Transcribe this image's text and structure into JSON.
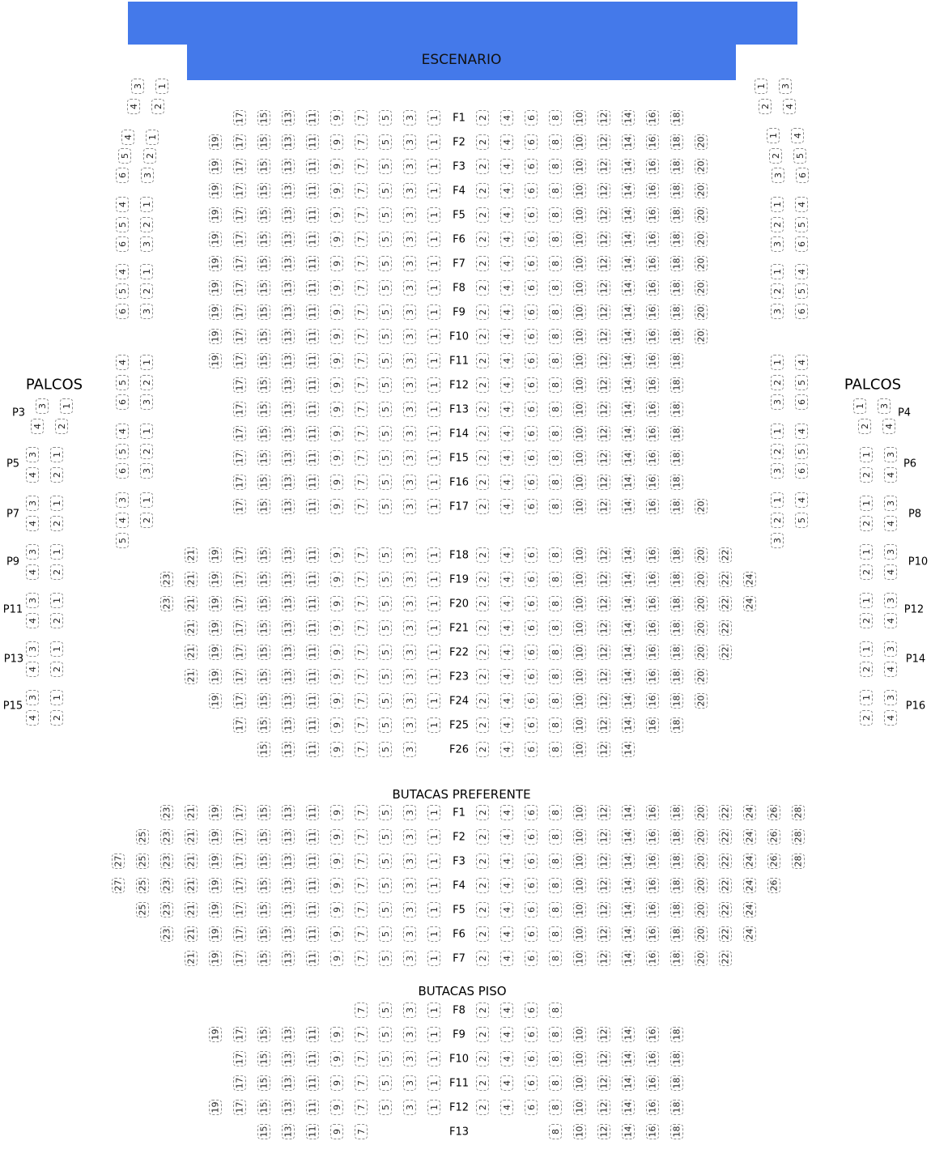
{
  "stage": {
    "label": "ESCENARIO",
    "color": "#4479ea"
  },
  "palcos_label": "PALCOS",
  "main": {
    "rows": [
      {
        "label": "F1",
        "left": [
          17,
          15,
          13,
          11,
          9,
          7,
          5,
          3,
          1
        ],
        "right": [
          2,
          4,
          6,
          8,
          10,
          12,
          14,
          16,
          18
        ]
      },
      {
        "label": "F2",
        "left": [
          19,
          17,
          15,
          13,
          11,
          9,
          7,
          5,
          3,
          1
        ],
        "right": [
          2,
          4,
          6,
          8,
          10,
          12,
          14,
          16,
          18,
          20
        ]
      },
      {
        "label": "F3",
        "left": [
          19,
          17,
          15,
          13,
          11,
          9,
          7,
          5,
          3,
          1
        ],
        "right": [
          2,
          4,
          6,
          8,
          10,
          12,
          14,
          16,
          18,
          20
        ]
      },
      {
        "label": "F4",
        "left": [
          19,
          17,
          15,
          13,
          11,
          9,
          7,
          5,
          3,
          1
        ],
        "right": [
          2,
          4,
          6,
          8,
          10,
          12,
          14,
          16,
          18,
          20
        ]
      },
      {
        "label": "F5",
        "left": [
          19,
          17,
          15,
          13,
          11,
          9,
          7,
          5,
          3,
          1
        ],
        "right": [
          2,
          4,
          6,
          8,
          10,
          12,
          14,
          16,
          18,
          20
        ]
      },
      {
        "label": "F6",
        "left": [
          19,
          17,
          15,
          13,
          11,
          9,
          7,
          5,
          3,
          1
        ],
        "right": [
          2,
          4,
          6,
          8,
          10,
          12,
          14,
          16,
          18,
          20
        ]
      },
      {
        "label": "F7",
        "left": [
          19,
          17,
          15,
          13,
          11,
          9,
          7,
          5,
          3,
          1
        ],
        "right": [
          2,
          4,
          6,
          8,
          10,
          12,
          14,
          16,
          18,
          20
        ]
      },
      {
        "label": "F8",
        "left": [
          19,
          17,
          15,
          13,
          11,
          9,
          7,
          5,
          3,
          1
        ],
        "right": [
          2,
          4,
          6,
          8,
          10,
          12,
          14,
          16,
          18,
          20
        ]
      },
      {
        "label": "F9",
        "left": [
          19,
          17,
          15,
          13,
          11,
          9,
          7,
          5,
          3,
          1
        ],
        "right": [
          2,
          4,
          6,
          8,
          10,
          12,
          14,
          16,
          18,
          20
        ]
      },
      {
        "label": "F10",
        "left": [
          19,
          17,
          15,
          13,
          11,
          9,
          7,
          5,
          3,
          1
        ],
        "right": [
          2,
          4,
          6,
          8,
          10,
          12,
          14,
          16,
          18,
          20
        ]
      },
      {
        "label": "F11",
        "left": [
          19,
          17,
          15,
          13,
          11,
          9,
          7,
          5,
          3,
          1
        ],
        "right": [
          2,
          4,
          6,
          8,
          10,
          12,
          14,
          16,
          18
        ]
      },
      {
        "label": "F12",
        "left": [
          17,
          15,
          13,
          11,
          9,
          7,
          5,
          3,
          1
        ],
        "right": [
          2,
          4,
          6,
          8,
          10,
          12,
          14,
          16,
          18
        ]
      },
      {
        "label": "F13",
        "left": [
          17,
          15,
          13,
          11,
          9,
          7,
          5,
          3,
          1
        ],
        "right": [
          2,
          4,
          6,
          8,
          10,
          12,
          14,
          16,
          18
        ]
      },
      {
        "label": "F14",
        "left": [
          17,
          15,
          13,
          11,
          9,
          7,
          5,
          3,
          1
        ],
        "right": [
          2,
          4,
          6,
          8,
          10,
          12,
          14,
          16,
          18
        ]
      },
      {
        "label": "F15",
        "left": [
          17,
          15,
          13,
          11,
          9,
          7,
          5,
          3,
          1
        ],
        "right": [
          2,
          4,
          6,
          8,
          10,
          12,
          14,
          16,
          18
        ]
      },
      {
        "label": "F16",
        "left": [
          17,
          15,
          13,
          11,
          9,
          7,
          5,
          3,
          1
        ],
        "right": [
          2,
          4,
          6,
          8,
          10,
          12,
          14,
          16,
          18
        ]
      },
      {
        "label": "F17",
        "left": [
          17,
          15,
          13,
          11,
          9,
          7,
          5,
          3,
          1
        ],
        "right": [
          2,
          4,
          6,
          8,
          10,
          12,
          14,
          16,
          18,
          20
        ]
      },
      {
        "label": "F18",
        "left": [
          21,
          19,
          17,
          15,
          13,
          11,
          9,
          7,
          5,
          3,
          1
        ],
        "right": [
          2,
          4,
          6,
          8,
          10,
          12,
          14,
          16,
          18,
          20,
          22
        ]
      },
      {
        "label": "F19",
        "left": [
          23,
          21,
          19,
          17,
          15,
          13,
          11,
          9,
          7,
          5,
          3,
          1
        ],
        "right": [
          2,
          4,
          6,
          8,
          10,
          12,
          14,
          16,
          18,
          20,
          22,
          24
        ]
      },
      {
        "label": "F20",
        "left": [
          23,
          21,
          19,
          17,
          15,
          13,
          11,
          9,
          7,
          5,
          3,
          1
        ],
        "right": [
          2,
          4,
          6,
          8,
          10,
          12,
          14,
          16,
          18,
          20,
          22,
          24
        ]
      },
      {
        "label": "F21",
        "left": [
          21,
          19,
          17,
          15,
          13,
          11,
          9,
          7,
          5,
          3,
          1
        ],
        "right": [
          2,
          4,
          6,
          8,
          10,
          12,
          14,
          16,
          18,
          20,
          22
        ]
      },
      {
        "label": "F22",
        "left": [
          21,
          19,
          17,
          15,
          13,
          11,
          9,
          7,
          5,
          3,
          1
        ],
        "right": [
          2,
          4,
          6,
          8,
          10,
          12,
          14,
          16,
          18,
          20,
          22
        ]
      },
      {
        "label": "F23",
        "left": [
          21,
          19,
          17,
          15,
          13,
          11,
          9,
          7,
          5,
          3,
          1
        ],
        "right": [
          2,
          4,
          6,
          8,
          10,
          12,
          14,
          16,
          18,
          20
        ]
      },
      {
        "label": "F24",
        "left": [
          19,
          17,
          15,
          13,
          11,
          9,
          7,
          5,
          3,
          1
        ],
        "right": [
          2,
          4,
          6,
          8,
          10,
          12,
          14,
          16,
          18,
          20
        ]
      },
      {
        "label": "F25",
        "left": [
          17,
          15,
          13,
          11,
          9,
          7,
          5,
          3,
          1
        ],
        "right": [
          2,
          4,
          6,
          8,
          10,
          12,
          14,
          16,
          18
        ]
      },
      {
        "label": "F26",
        "left": [
          15,
          13,
          11,
          9,
          7,
          5,
          3
        ],
        "right": [
          2,
          4,
          6,
          8,
          10,
          12,
          14
        ]
      }
    ]
  },
  "preferente": {
    "title": "BUTACAS PREFERENTE",
    "rows": [
      {
        "label": "F1",
        "left": [
          23,
          21,
          19,
          17,
          15,
          13,
          11,
          9,
          7,
          5,
          3,
          1
        ],
        "right": [
          2,
          4,
          6,
          8,
          10,
          12,
          14,
          16,
          18,
          20,
          22,
          24,
          26,
          28
        ]
      },
      {
        "label": "F2",
        "left": [
          25,
          23,
          21,
          19,
          17,
          15,
          13,
          11,
          9,
          7,
          5,
          3,
          1
        ],
        "right": [
          2,
          4,
          6,
          8,
          10,
          12,
          14,
          16,
          18,
          20,
          22,
          24,
          26,
          28
        ]
      },
      {
        "label": "F3",
        "left": [
          27,
          25,
          23,
          21,
          19,
          17,
          15,
          13,
          11,
          9,
          7,
          5,
          3,
          1
        ],
        "right": [
          2,
          4,
          6,
          8,
          10,
          12,
          14,
          16,
          18,
          20,
          22,
          24,
          26,
          28
        ]
      },
      {
        "label": "F4",
        "left": [
          27,
          25,
          23,
          21,
          19,
          17,
          15,
          13,
          11,
          9,
          7,
          5,
          3,
          1
        ],
        "right": [
          2,
          4,
          6,
          8,
          10,
          12,
          14,
          16,
          18,
          20,
          22,
          24,
          26
        ]
      },
      {
        "label": "F5",
        "left": [
          25,
          23,
          21,
          19,
          17,
          15,
          13,
          11,
          9,
          7,
          5,
          3,
          1
        ],
        "right": [
          2,
          4,
          6,
          8,
          10,
          12,
          14,
          16,
          18,
          20,
          22,
          24
        ]
      },
      {
        "label": "F6",
        "left": [
          23,
          21,
          19,
          17,
          15,
          13,
          11,
          9,
          7,
          5,
          3,
          1
        ],
        "right": [
          2,
          4,
          6,
          8,
          10,
          12,
          14,
          16,
          18,
          20,
          22,
          24
        ]
      },
      {
        "label": "F7",
        "left": [
          21,
          19,
          17,
          15,
          13,
          11,
          9,
          7,
          5,
          3,
          1
        ],
        "right": [
          2,
          4,
          6,
          8,
          10,
          12,
          14,
          16,
          18,
          20,
          22
        ]
      }
    ]
  },
  "piso": {
    "title": "BUTACAS PISO",
    "rows": [
      {
        "label": "F8",
        "left": [
          7,
          5,
          3,
          1
        ],
        "right": [
          2,
          4,
          6,
          8
        ]
      },
      {
        "label": "F9",
        "left": [
          19,
          17,
          15,
          13,
          11,
          9,
          7,
          5,
          3,
          1
        ],
        "right": [
          2,
          4,
          6,
          8,
          10,
          12,
          14,
          16,
          18
        ]
      },
      {
        "label": "F10",
        "left": [
          17,
          15,
          13,
          11,
          9,
          7,
          5,
          3,
          1
        ],
        "right": [
          2,
          4,
          6,
          8,
          10,
          12,
          14,
          16,
          18
        ]
      },
      {
        "label": "F11",
        "left": [
          17,
          15,
          13,
          11,
          9,
          7,
          5,
          3,
          1
        ],
        "right": [
          2,
          4,
          6,
          8,
          10,
          12,
          14,
          16,
          18
        ]
      },
      {
        "label": "F12",
        "left": [
          19,
          17,
          15,
          13,
          11,
          9,
          7,
          5,
          3,
          1
        ],
        "right": [
          2,
          4,
          6,
          8,
          10,
          12,
          14,
          16,
          18
        ]
      },
      {
        "label": "F13",
        "left": [
          15,
          13,
          11,
          9,
          7
        ],
        "right": [
          8,
          10,
          12,
          14,
          16,
          18
        ]
      }
    ]
  },
  "side_left": [
    [
      [
        3,
        1
      ],
      [
        4,
        2
      ]
    ],
    [
      [
        4,
        1
      ],
      [
        5,
        2
      ],
      [
        6,
        3
      ]
    ],
    [
      [
        4,
        1
      ],
      [
        5,
        2
      ],
      [
        6,
        3
      ]
    ],
    [
      [
        4,
        1
      ],
      [
        5,
        2
      ],
      [
        6,
        3
      ]
    ],
    [
      [
        4,
        1
      ],
      [
        5,
        2
      ],
      [
        6,
        3
      ]
    ],
    [
      [
        4,
        1
      ],
      [
        5,
        2
      ],
      [
        6,
        3
      ]
    ],
    [
      [
        3,
        1
      ],
      [
        4,
        2
      ],
      [
        5
      ]
    ]
  ],
  "side_right": [
    [
      [
        1,
        3
      ],
      [
        2,
        4
      ]
    ],
    [
      [
        1,
        4
      ],
      [
        2,
        5
      ],
      [
        3,
        6
      ]
    ],
    [
      [
        1,
        4
      ],
      [
        2,
        5
      ],
      [
        3,
        6
      ]
    ],
    [
      [
        1,
        4
      ],
      [
        2,
        5
      ],
      [
        3,
        6
      ]
    ],
    [
      [
        1,
        4
      ],
      [
        2,
        5
      ],
      [
        3,
        6
      ]
    ],
    [
      [
        1,
        4
      ],
      [
        2,
        5
      ],
      [
        3,
        6
      ]
    ],
    [
      [
        1,
        4
      ],
      [
        2,
        5
      ],
      [
        3
      ]
    ]
  ],
  "palcos_left": [
    {
      "label": "P3",
      "rows": [
        [
          3,
          1
        ],
        [
          4,
          2
        ]
      ]
    },
    {
      "label": "P5",
      "rows": [
        [
          3,
          1
        ],
        [
          4,
          2
        ]
      ]
    },
    {
      "label": "P7",
      "rows": [
        [
          3,
          1
        ],
        [
          4,
          2
        ]
      ]
    },
    {
      "label": "P9",
      "rows": [
        [
          3,
          1
        ],
        [
          4,
          2
        ]
      ]
    },
    {
      "label": "P11",
      "rows": [
        [
          3,
          1
        ],
        [
          4,
          2
        ]
      ]
    },
    {
      "label": "P13",
      "rows": [
        [
          3,
          1
        ],
        [
          4,
          2
        ]
      ]
    },
    {
      "label": "P15",
      "rows": [
        [
          3,
          1
        ],
        [
          4,
          2
        ]
      ]
    }
  ],
  "palcos_right": [
    {
      "label": "P4",
      "rows": [
        [
          1,
          3
        ],
        [
          2,
          4
        ]
      ]
    },
    {
      "label": "P6",
      "rows": [
        [
          1,
          3
        ],
        [
          2,
          4
        ]
      ]
    },
    {
      "label": "P8",
      "rows": [
        [
          1,
          3
        ],
        [
          2,
          4
        ]
      ]
    },
    {
      "label": "P10",
      "rows": [
        [
          1,
          3
        ],
        [
          2,
          4
        ]
      ]
    },
    {
      "label": "P12",
      "rows": [
        [
          1,
          3
        ],
        [
          2,
          4
        ]
      ]
    },
    {
      "label": "P14",
      "rows": [
        [
          1,
          3
        ],
        [
          2,
          4
        ]
      ]
    },
    {
      "label": "P16",
      "rows": [
        [
          1,
          3
        ],
        [
          2,
          4
        ]
      ]
    }
  ]
}
